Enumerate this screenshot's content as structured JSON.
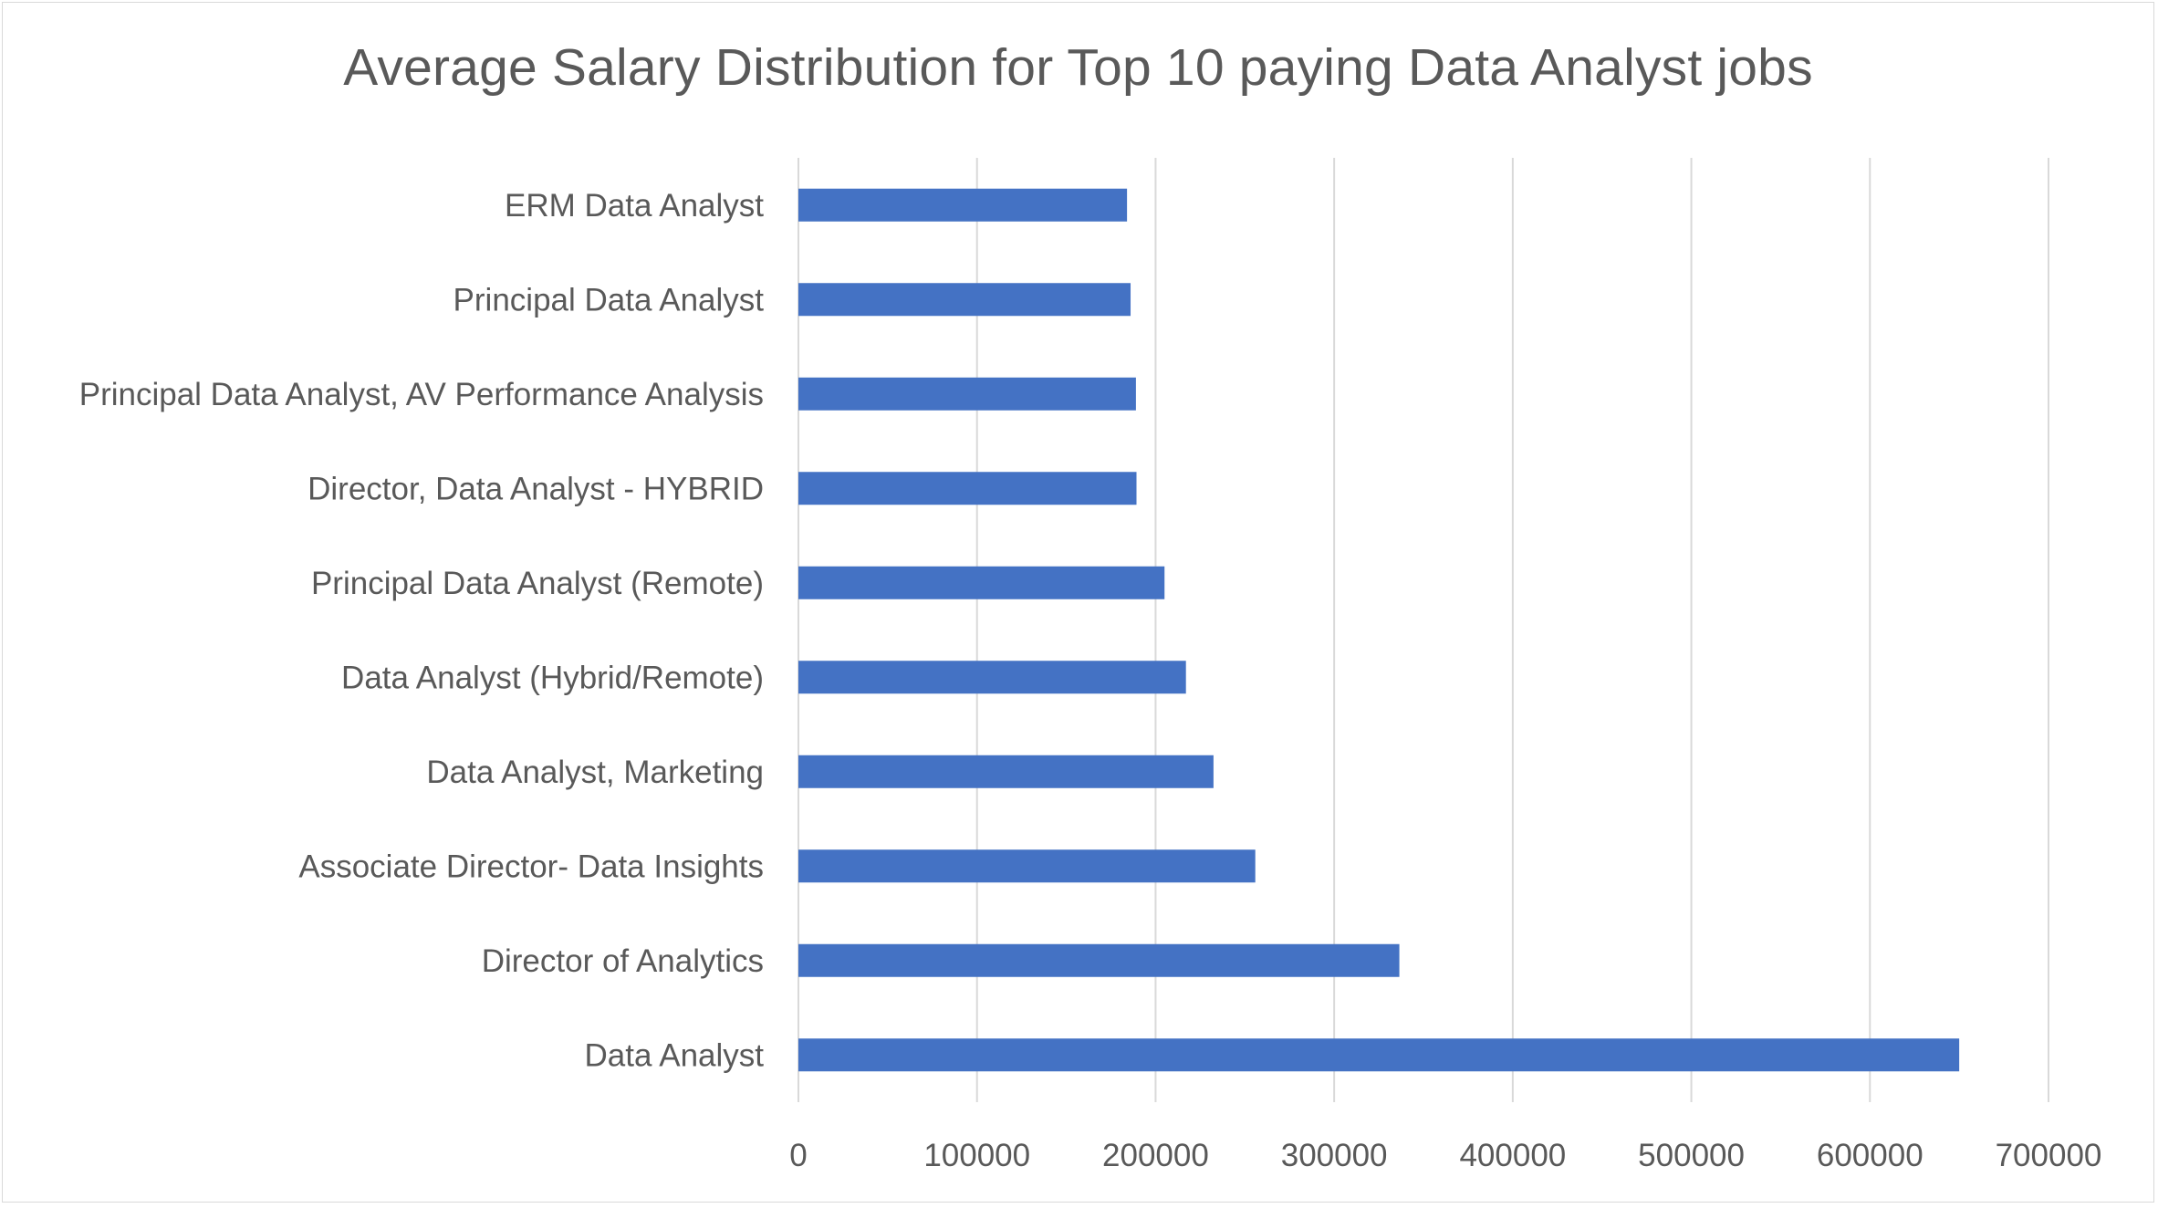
{
  "chart_data": {
    "type": "bar",
    "orientation": "horizontal",
    "title": "Average Salary Distribution for Top 10 paying Data Analyst jobs",
    "xlabel": "",
    "ylabel": "",
    "categories": [
      "Data Analyst",
      "Director of Analytics",
      "Associate Director- Data Insights",
      "Data Analyst, Marketing",
      "Data Analyst (Hybrid/Remote)",
      "Principal Data Analyst (Remote)",
      "Director, Data Analyst - HYBRID",
      "Principal Data Analyst, AV Performance Analysis",
      "Principal Data Analyst",
      "ERM Data Analyst"
    ],
    "values": [
      650000,
      336500,
      255830,
      232423,
      217000,
      205000,
      189309,
      189000,
      186000,
      184000
    ],
    "xlim": [
      0,
      700000
    ],
    "xticks": [
      "0",
      "100000",
      "200000",
      "300000",
      "400000",
      "500000",
      "600000",
      "700000"
    ],
    "grid": true,
    "legend": "none",
    "colors": {
      "bar": "#4472c4",
      "grid": "#d9d9d9",
      "text": "#595959"
    }
  }
}
